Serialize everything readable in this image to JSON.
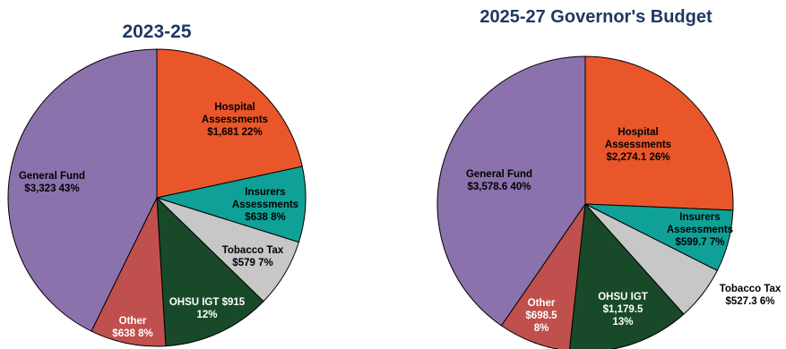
{
  "chart_data": [
    {
      "type": "pie",
      "title": "2023-25",
      "slices": [
        {
          "name": "Hospital Assessments",
          "value": 1681,
          "display": "$1,681",
          "pct": "22%",
          "color": "#e8562a",
          "text_color": "#000000"
        },
        {
          "name": "Insurers Assessments",
          "value": 638,
          "display": "$638",
          "pct": "8%",
          "color": "#0fa197",
          "text_color": "#000000"
        },
        {
          "name": "Tobacco Tax",
          "value": 579,
          "display": "$579",
          "pct": "7%",
          "color": "#c7c7c7",
          "text_color": "#000000"
        },
        {
          "name": "OHSU IGT",
          "value": 915,
          "display": "$915",
          "pct": "12%",
          "color": "#184a2a",
          "text_color": "#ffffff"
        },
        {
          "name": "Other",
          "value": 638,
          "display": "$638",
          "pct": "8%",
          "color": "#c0504d",
          "text_color": "#ffffff"
        },
        {
          "name": "General Fund",
          "value": 3323,
          "display": "$3,323",
          "pct": "43%",
          "color": "#8b72ad",
          "text_color": "#000000"
        }
      ]
    },
    {
      "type": "pie",
      "title": "2025-27 Governor's Budget",
      "slices": [
        {
          "name": "Hospital Assessments",
          "value": 2274.1,
          "display": "$2,274.1",
          "pct": "26%",
          "color": "#e8562a",
          "text_color": "#000000"
        },
        {
          "name": "Insurers Assessments",
          "value": 599.7,
          "display": "$599.7",
          "pct": "7%",
          "color": "#0fa197",
          "text_color": "#000000"
        },
        {
          "name": "Tobacco Tax",
          "value": 527.3,
          "display": "$527.3",
          "pct": "6%",
          "color": "#c7c7c7",
          "text_color": "#000000"
        },
        {
          "name": "OHSU IGT",
          "value": 1179.5,
          "display": "$1,179.5",
          "pct": "13%",
          "color": "#184a2a",
          "text_color": "#ffffff"
        },
        {
          "name": "Other",
          "value": 698.5,
          "display": "$698.5",
          "pct": "8%",
          "color": "#c0504d",
          "text_color": "#ffffff"
        },
        {
          "name": "General Fund",
          "value": 3578.6,
          "display": "$3,578.6",
          "pct": "40%",
          "color": "#8b72ad",
          "text_color": "#000000"
        }
      ]
    }
  ]
}
